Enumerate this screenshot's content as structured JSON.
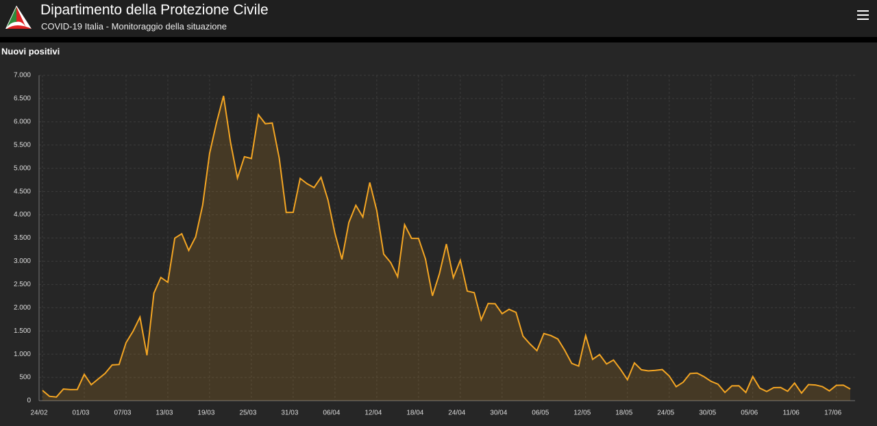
{
  "header": {
    "title": "Dipartimento della Protezione Civile",
    "subtitle": "COVID-19 Italia - Monitoraggio della situazione"
  },
  "chart_data": {
    "type": "line",
    "title": "Nuovi positivi",
    "categories": [
      "24/02",
      null,
      null,
      null,
      null,
      null,
      "01/03",
      null,
      null,
      null,
      null,
      null,
      "07/03",
      null,
      null,
      null,
      null,
      null,
      "13/03",
      null,
      null,
      null,
      null,
      null,
      "19/03",
      null,
      null,
      null,
      null,
      null,
      "25/03",
      null,
      null,
      null,
      null,
      null,
      "31/03",
      null,
      null,
      null,
      null,
      null,
      "06/04",
      null,
      null,
      null,
      null,
      null,
      "12/04",
      null,
      null,
      null,
      null,
      null,
      "18/04",
      null,
      null,
      null,
      null,
      null,
      "24/04",
      null,
      null,
      null,
      null,
      null,
      "30/04",
      null,
      null,
      null,
      null,
      null,
      "06/05",
      null,
      null,
      null,
      null,
      null,
      "12/05",
      null,
      null,
      null,
      null,
      null,
      "18/05",
      null,
      null,
      null,
      null,
      null,
      "24/05",
      null,
      null,
      null,
      null,
      null,
      "30/05",
      null,
      null,
      null,
      null,
      null,
      "05/06",
      null,
      null,
      null,
      null,
      null,
      "11/06",
      null,
      null,
      null,
      null,
      null,
      "17/06",
      null,
      null
    ],
    "series": [
      {
        "name": "Nuovi positivi",
        "color": "#f5a623",
        "values": [
          221,
          93,
          78,
          250,
          238,
          240,
          566,
          342,
          466,
          587,
          769,
          778,
          1247,
          1492,
          1797,
          977,
          2313,
          2651,
          2547,
          3497,
          3590,
          3233,
          3526,
          4207,
          5322,
          5986,
          6557,
          5560,
          4789,
          5249,
          5210,
          6153,
          5959,
          5974,
          5217,
          4050,
          4053,
          4782,
          4668,
          4585,
          4805,
          4316,
          3599,
          3039,
          3836,
          4204,
          3951,
          4694,
          4092,
          3153,
          2972,
          2667,
          3786,
          3493,
          3491,
          3047,
          2256,
          2729,
          3370,
          2646,
          3021,
          2357,
          2324,
          1739,
          2091,
          2086,
          1872,
          1965,
          1900,
          1389,
          1221,
          1075,
          1444,
          1401,
          1327,
          1083,
          802,
          744,
          1402,
          888,
          992,
          789,
          875,
          675,
          451,
          813,
          665,
          642,
          652,
          669,
          531,
          300,
          397,
          584,
          593,
          516,
          416,
          355,
          178,
          318,
          321,
          177,
          518,
          270,
          197,
          280,
          283,
          202,
          379,
          163,
          346,
          338,
          301,
          210,
          329,
          333,
          251
        ]
      }
    ],
    "ylim": [
      0,
      7000
    ],
    "yticks": [
      0,
      500,
      {
        "value": 1000,
        "label": "1.000"
      },
      {
        "value": 1500,
        "label": "1.500"
      },
      {
        "value": 2000,
        "label": "2.000"
      },
      {
        "value": 2500,
        "label": "2.500"
      },
      {
        "value": 3000,
        "label": "3.000"
      },
      {
        "value": 3500,
        "label": "3.500"
      },
      {
        "value": 4000,
        "label": "4.000"
      },
      {
        "value": 4500,
        "label": "4.500"
      },
      {
        "value": 5000,
        "label": "5.000"
      },
      {
        "value": 5500,
        "label": "5.500"
      },
      {
        "value": 6000,
        "label": "6.000"
      },
      {
        "value": 6500,
        "label": "6.500"
      },
      {
        "value": 7000,
        "label": "7.000"
      }
    ],
    "grid": true
  }
}
